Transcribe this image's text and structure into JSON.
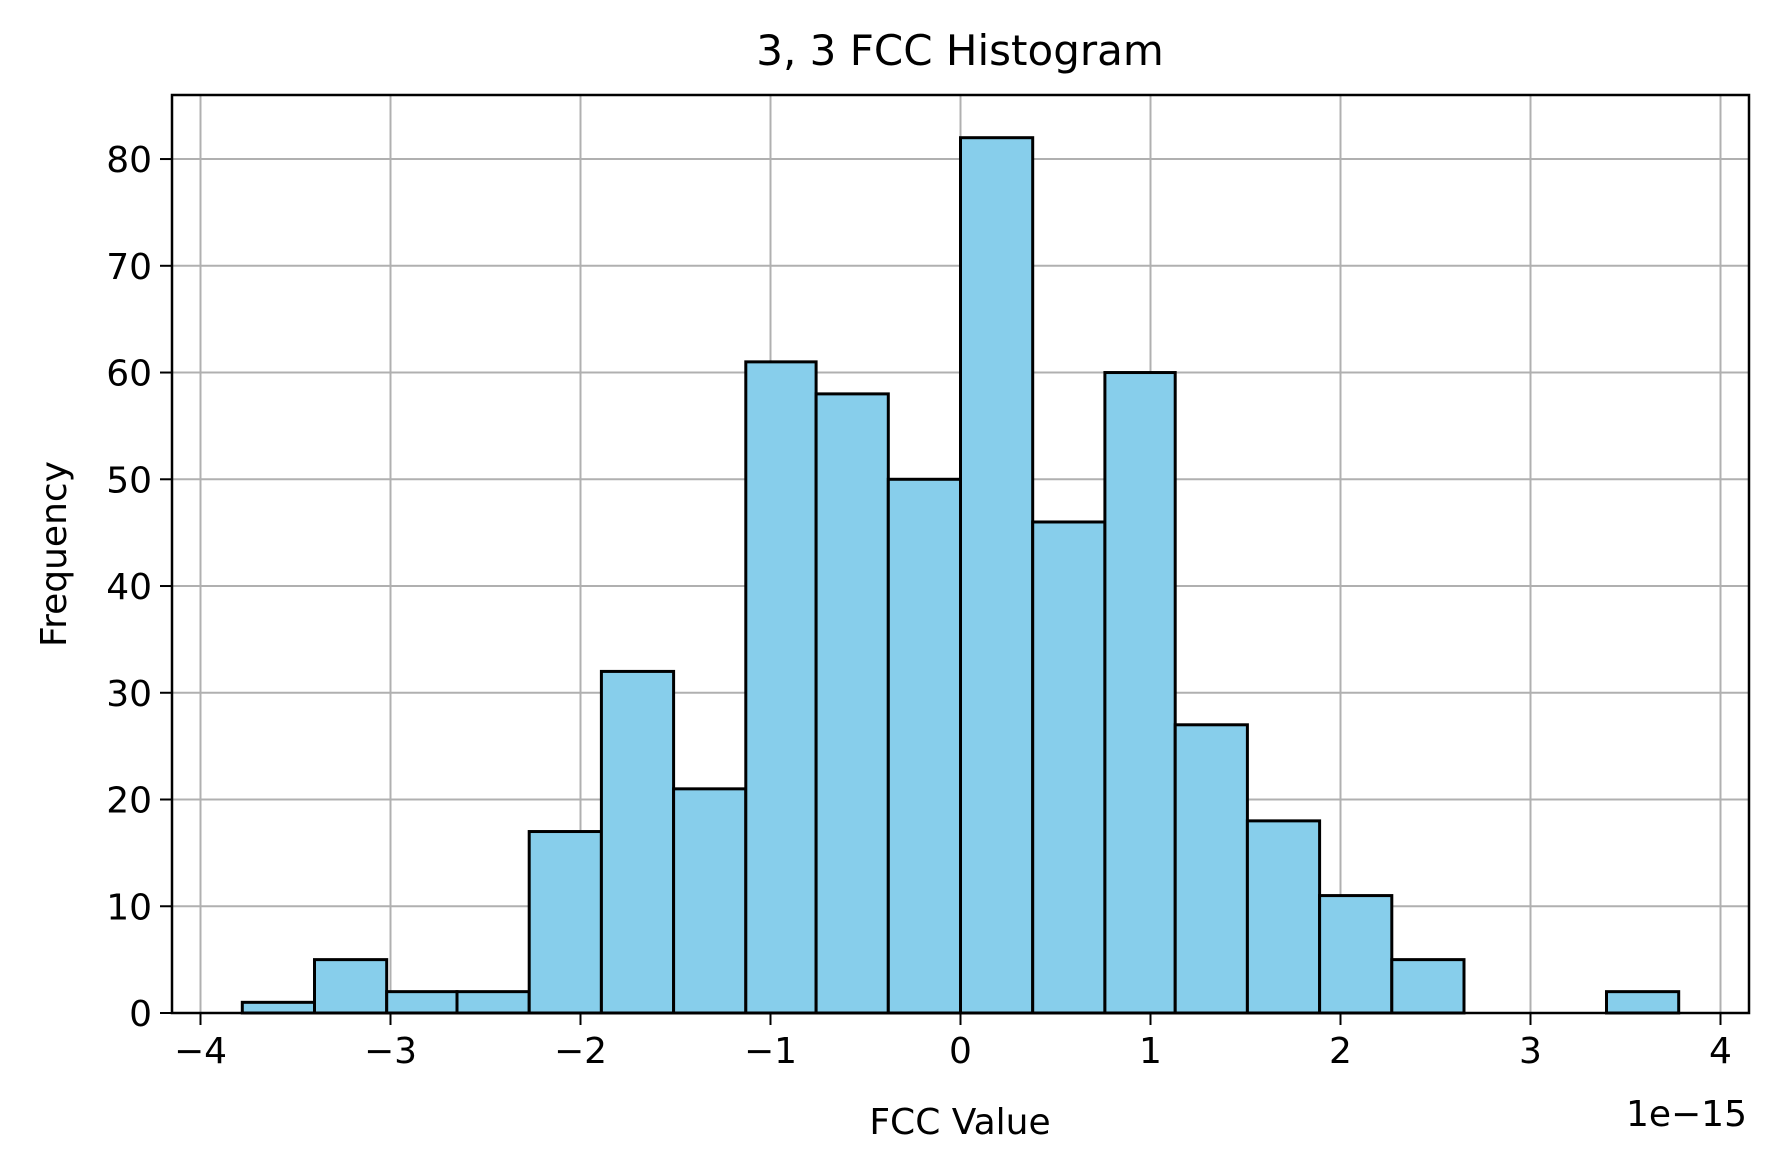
{
  "chart_data": {
    "type": "bar",
    "title": "3, 3 FCC Histogram",
    "xlabel": "FCC Value",
    "ylabel": "Frequency",
    "x_offset_label": "1e−15",
    "xlim": [
      -4.15,
      4.15
    ],
    "ylim": [
      0,
      86
    ],
    "grid": true,
    "bar_color": "#87CEEB",
    "edge_color": "#000000",
    "grid_color": "#b0b0b0",
    "x_ticks": [
      {
        "value": -4,
        "label": "−4"
      },
      {
        "value": -3,
        "label": "−3"
      },
      {
        "value": -2,
        "label": "−2"
      },
      {
        "value": -1,
        "label": "−1"
      },
      {
        "value": 0,
        "label": "0"
      },
      {
        "value": 1,
        "label": "1"
      },
      {
        "value": 2,
        "label": "2"
      },
      {
        "value": 3,
        "label": "3"
      },
      {
        "value": 4,
        "label": "4"
      }
    ],
    "y_ticks": [
      {
        "value": 0,
        "label": "0"
      },
      {
        "value": 10,
        "label": "10"
      },
      {
        "value": 20,
        "label": "20"
      },
      {
        "value": 30,
        "label": "30"
      },
      {
        "value": 40,
        "label": "40"
      },
      {
        "value": 50,
        "label": "50"
      },
      {
        "value": 60,
        "label": "60"
      },
      {
        "value": 70,
        "label": "70"
      },
      {
        "value": 80,
        "label": "80"
      }
    ],
    "bin_edges": [
      -3.78,
      -3.4,
      -3.02,
      -2.65,
      -2.27,
      -1.89,
      -1.51,
      -1.13,
      -0.76,
      -0.38,
      0.0,
      0.38,
      0.76,
      1.13,
      1.51,
      1.89,
      2.27,
      2.65,
      3.02,
      3.4,
      3.78
    ],
    "counts": [
      1,
      5,
      2,
      2,
      17,
      32,
      21,
      61,
      58,
      50,
      82,
      46,
      60,
      27,
      18,
      11,
      5,
      0,
      0,
      2
    ]
  }
}
